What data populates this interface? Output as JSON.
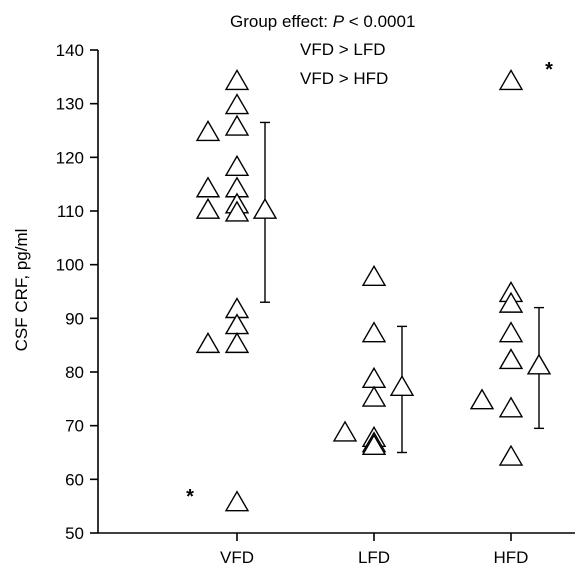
{
  "chart_data": {
    "type": "scatter",
    "ylabel": "CSF CRF, pg/ml",
    "xlabel": "",
    "ylim": [
      50,
      140
    ],
    "yticks": [
      50,
      60,
      70,
      80,
      90,
      100,
      110,
      120,
      130,
      140
    ],
    "categories": [
      "VFD",
      "LFD",
      "HFD"
    ],
    "annotations": {
      "line1_prefix": "Group effect: ",
      "line1_stat": "P",
      "line1_suffix": " < 0.0001",
      "line2": "VFD > LFD",
      "line3": "VFD > HFD"
    },
    "star_symbol": "*",
    "series": [
      {
        "category": "VFD",
        "points": [
          {
            "offset": -1,
            "y": 124.5
          },
          {
            "offset": -1,
            "y": 114
          },
          {
            "offset": -1,
            "y": 110
          },
          {
            "offset": -1,
            "y": 85
          },
          {
            "offset": 0,
            "y": 134
          },
          {
            "offset": 0,
            "y": 129.5
          },
          {
            "offset": 0,
            "y": 125.5
          },
          {
            "offset": 0,
            "y": 118
          },
          {
            "offset": 0,
            "y": 114
          },
          {
            "offset": 0,
            "y": 111
          },
          {
            "offset": 0,
            "y": 109.5
          },
          {
            "offset": 0,
            "y": 91.5
          },
          {
            "offset": 0,
            "y": 88.5
          },
          {
            "offset": 0,
            "y": 85
          },
          {
            "offset": 0,
            "y": 55.5
          }
        ],
        "mean": 110,
        "sd_low": 93,
        "sd_high": 126.5,
        "outlier_star_y": 57.5
      },
      {
        "category": "LFD",
        "points": [
          {
            "offset": -1,
            "y": 68.5
          },
          {
            "offset": 0,
            "y": 97.5
          },
          {
            "offset": 0,
            "y": 87
          },
          {
            "offset": 0,
            "y": 78.5
          },
          {
            "offset": 0,
            "y": 75
          },
          {
            "offset": 0,
            "y": 67.5
          },
          {
            "offset": 0,
            "y": 66.5
          },
          {
            "offset": 0,
            "y": 66
          }
        ],
        "mean": 77,
        "sd_low": 65,
        "sd_high": 88.5
      },
      {
        "category": "HFD",
        "points": [
          {
            "offset": -1,
            "y": 74.5
          },
          {
            "offset": 0,
            "y": 134
          },
          {
            "offset": 0,
            "y": 94.5
          },
          {
            "offset": 0,
            "y": 92.5
          },
          {
            "offset": 0,
            "y": 87
          },
          {
            "offset": 0,
            "y": 82
          },
          {
            "offset": 0,
            "y": 73
          },
          {
            "offset": 0,
            "y": 64
          }
        ],
        "mean": 81,
        "sd_low": 69.5,
        "sd_high": 92,
        "outlier_star_y": 137
      }
    ]
  }
}
